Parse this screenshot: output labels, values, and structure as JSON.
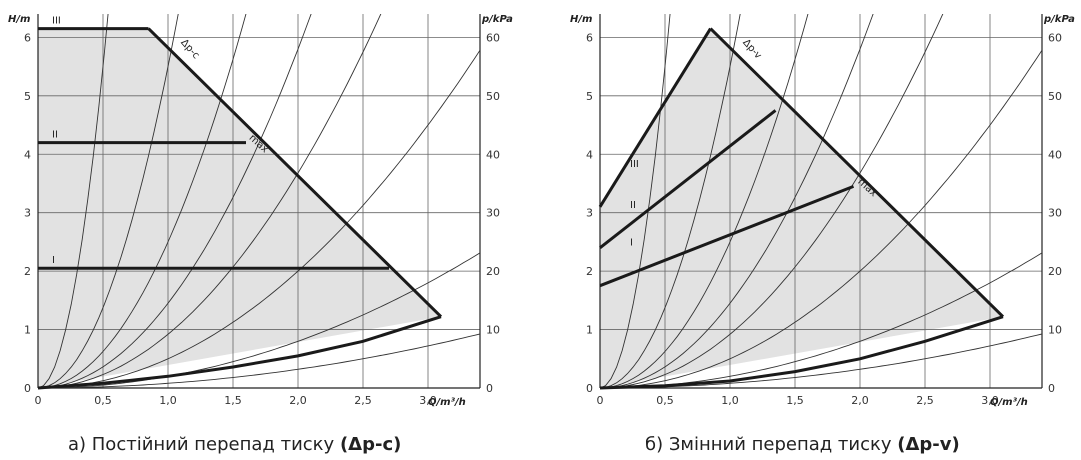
{
  "chart_data": [
    {
      "type": "line",
      "caption_text": "а) Постійний перепад тиску ",
      "caption_bold": "(Δp-c)",
      "y_label": "H/m",
      "y2_label": "p/kPa",
      "x_label": "Q/m³/h",
      "x_ticks": [
        "0",
        "0,5",
        "1,0",
        "1,5",
        "2,0",
        "2,5",
        "3,0"
      ],
      "y_ticks": [
        "0",
        "1",
        "2",
        "3",
        "4",
        "5",
        "6"
      ],
      "y2_ticks": [
        "0",
        "10",
        "20",
        "30",
        "40",
        "50",
        "60"
      ],
      "xlim": [
        0,
        3.4
      ],
      "ylim": [
        0,
        6.4
      ],
      "grid": true,
      "mode_label": "Δp-c",
      "max_label": "max",
      "region": [
        [
          0,
          6.15
        ],
        [
          0.85,
          6.15
        ],
        [
          3.1,
          1.22
        ],
        [
          0,
          0
        ]
      ],
      "max_curve": [
        [
          0.85,
          6.15
        ],
        [
          3.1,
          1.22
        ]
      ],
      "system_curve": [
        [
          0,
          0
        ],
        [
          0.5,
          0.08
        ],
        [
          1.0,
          0.2
        ],
        [
          1.5,
          0.36
        ],
        [
          2.0,
          0.55
        ],
        [
          2.5,
          0.8
        ],
        [
          3.1,
          1.22
        ]
      ],
      "series": [
        {
          "name": "III",
          "points": [
            [
              0,
              6.15
            ],
            [
              0.85,
              6.15
            ]
          ]
        },
        {
          "name": "II",
          "points": [
            [
              0,
              4.2
            ],
            [
              1.6,
              4.2
            ]
          ]
        },
        {
          "name": "I",
          "points": [
            [
              0,
              2.05
            ],
            [
              2.7,
              2.05
            ]
          ]
        }
      ],
      "parabola_coeffs": [
        22,
        5.5,
        2.5,
        1.45,
        0.92,
        0.5,
        0.2
      ],
      "thin_lower_coeff": 0.08
    },
    {
      "type": "line",
      "caption_text": "б) Змінний перепад тиску ",
      "caption_bold": "(Δp-v)",
      "y_label": "H/m",
      "y2_label": "p/kPa",
      "x_label": "Q/m³/h",
      "x_ticks": [
        "0",
        "0,5",
        "1,0",
        "1,5",
        "2,0",
        "2,5",
        "3,0"
      ],
      "y_ticks": [
        "0",
        "1",
        "2",
        "3",
        "4",
        "5",
        "6"
      ],
      "y2_ticks": [
        "0",
        "10",
        "20",
        "30",
        "40",
        "50",
        "60"
      ],
      "xlim": [
        0,
        3.4
      ],
      "ylim": [
        0,
        6.4
      ],
      "grid": true,
      "mode_label": "Δp-v",
      "max_label": "max",
      "region": [
        [
          0,
          3.1
        ],
        [
          0.85,
          6.15
        ],
        [
          3.1,
          1.22
        ],
        [
          0,
          0
        ]
      ],
      "max_curve": [
        [
          0.85,
          6.15
        ],
        [
          3.1,
          1.22
        ]
      ],
      "system_curve": [
        [
          0,
          0
        ],
        [
          0.5,
          0.04
        ],
        [
          1.0,
          0.12
        ],
        [
          1.5,
          0.28
        ],
        [
          2.0,
          0.5
        ],
        [
          2.5,
          0.8
        ],
        [
          3.1,
          1.22
        ]
      ],
      "series": [
        {
          "name": "III",
          "points": [
            [
              0,
              3.1
            ],
            [
              0.85,
              6.15
            ]
          ]
        },
        {
          "name": "II",
          "points": [
            [
              0,
              2.4
            ],
            [
              1.35,
              4.75
            ]
          ]
        },
        {
          "name": "I",
          "points": [
            [
              0,
              1.75
            ],
            [
              1.95,
              3.45
            ]
          ]
        }
      ],
      "parabola_coeffs": [
        22,
        5.5,
        2.5,
        1.45,
        0.92,
        0.5,
        0.2
      ],
      "thin_lower_coeff": 0.08
    }
  ]
}
